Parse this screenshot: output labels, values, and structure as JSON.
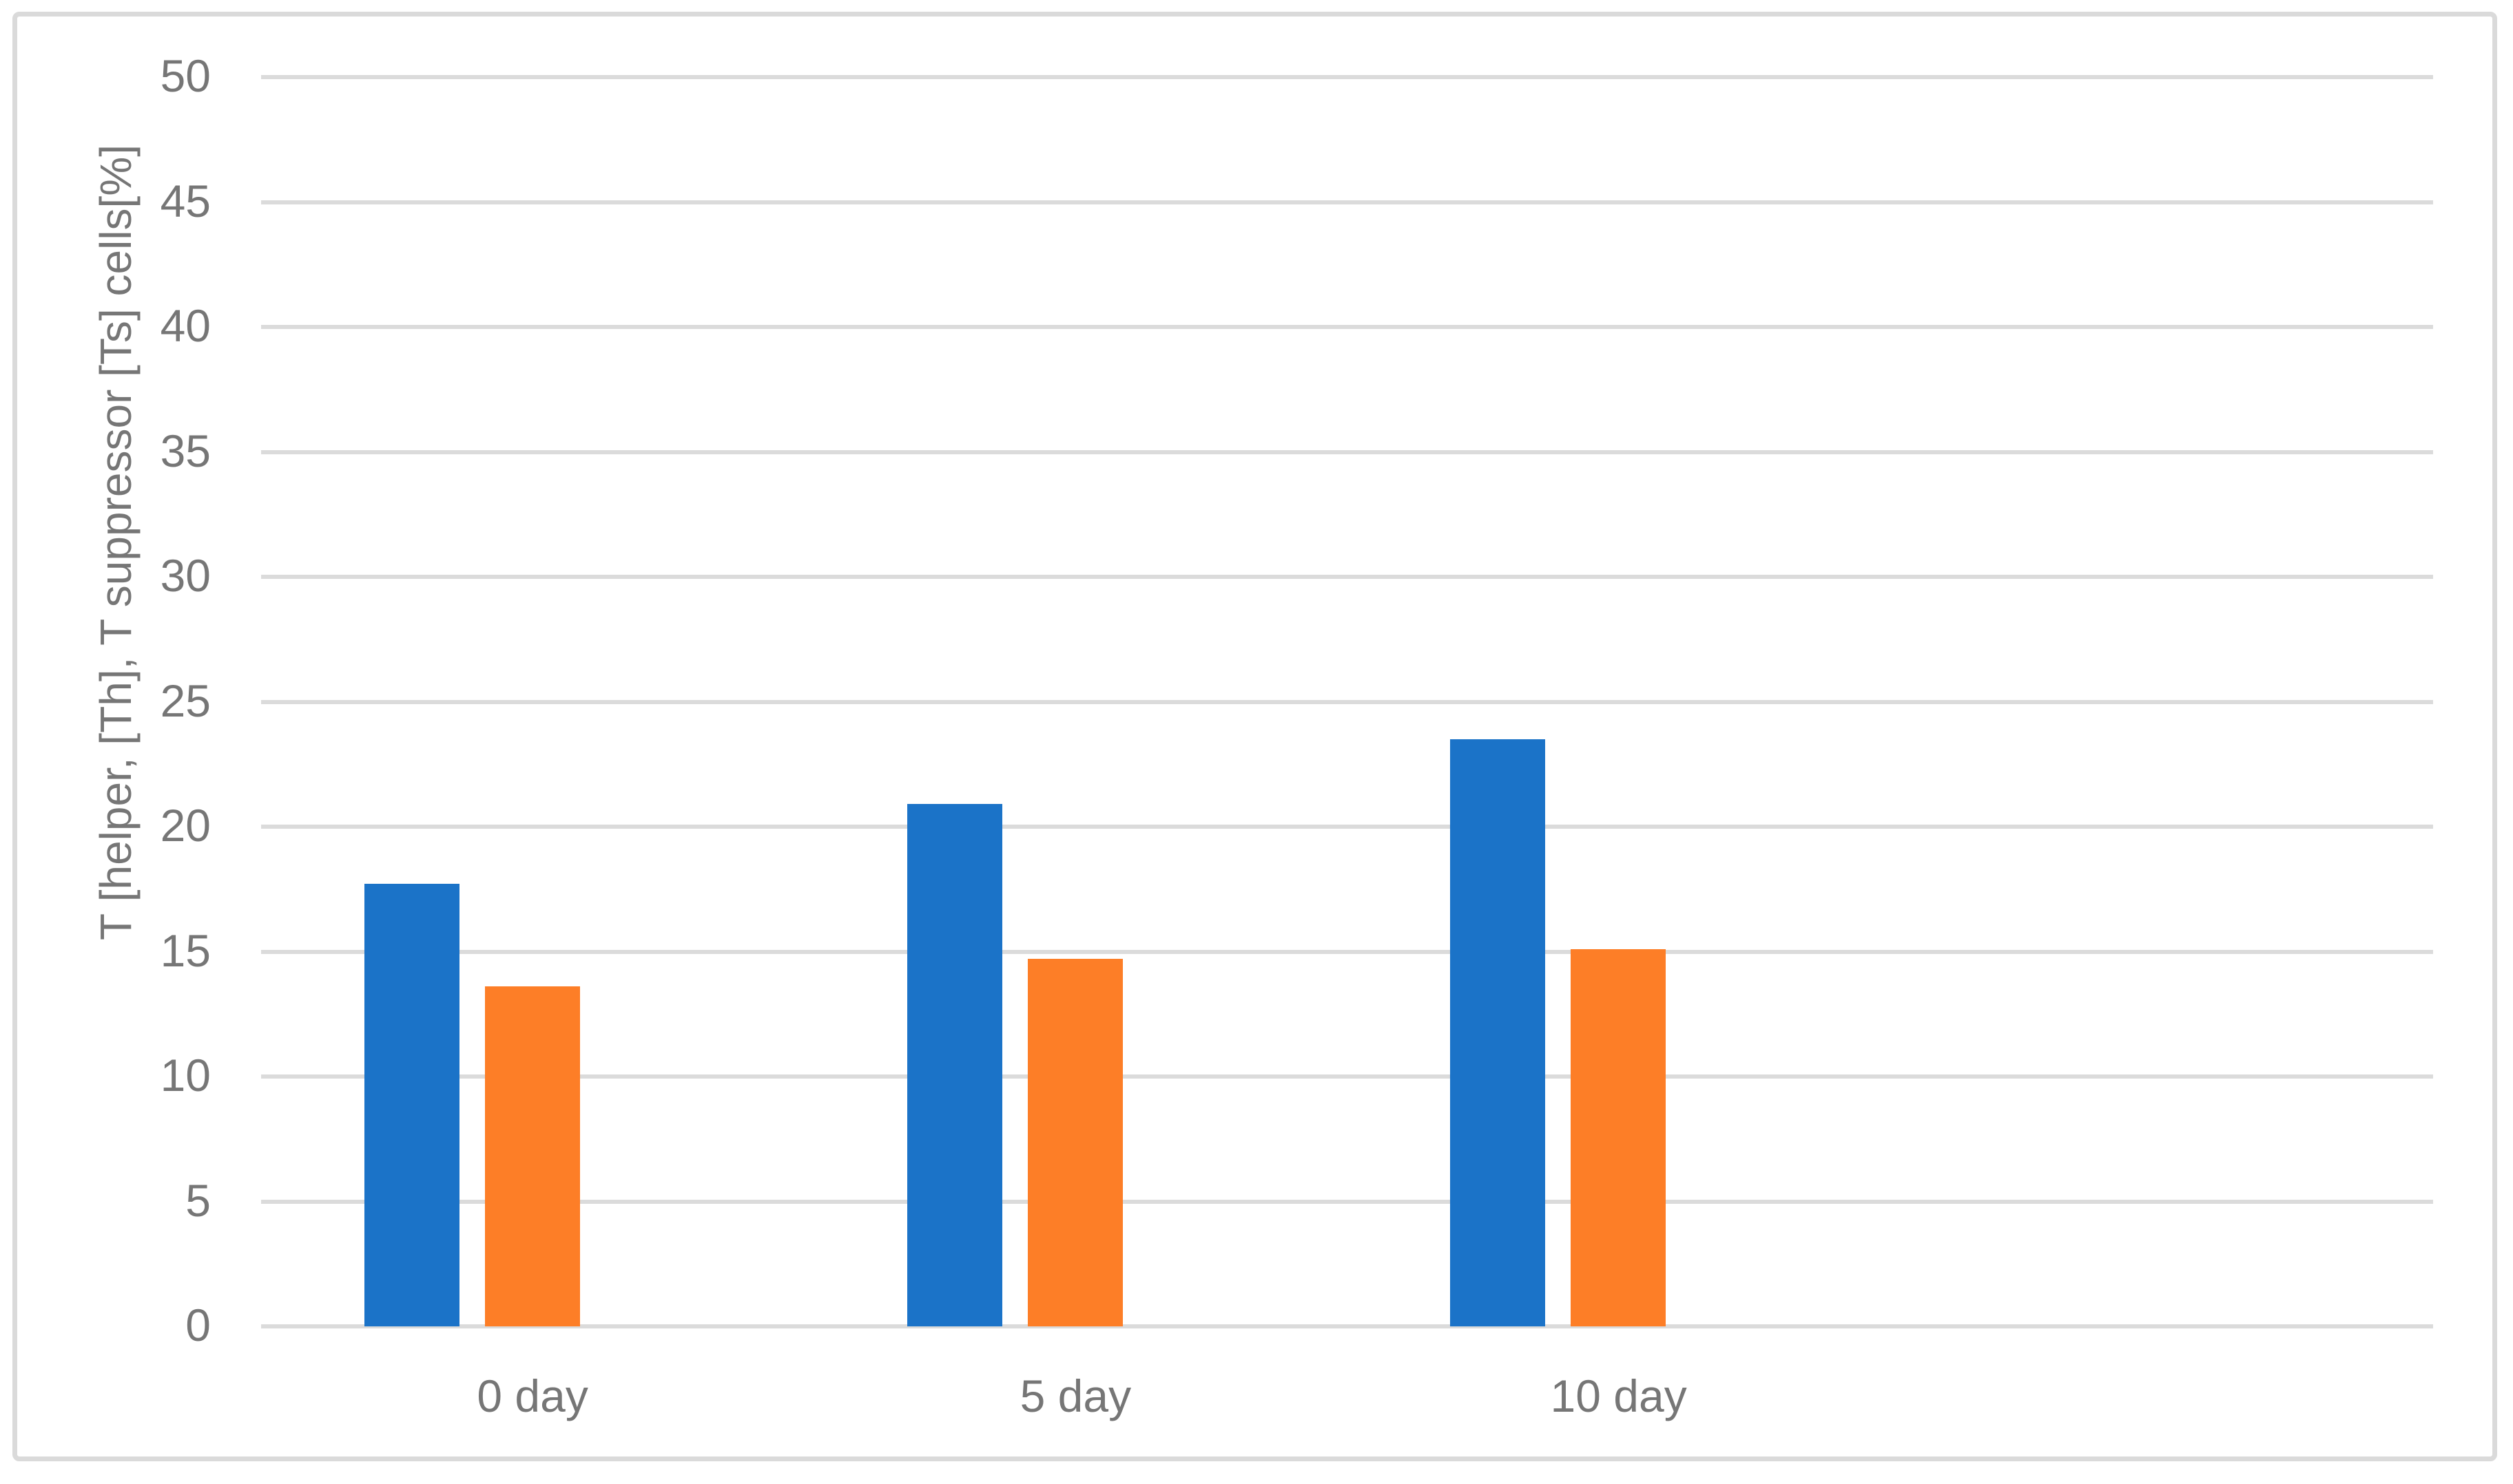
{
  "chart_data": {
    "type": "bar",
    "title": "",
    "categories": [
      "0 day",
      "5 day",
      "10 day"
    ],
    "series": [
      {
        "name": "T helper [Th]",
        "color": "#1B73C8",
        "values": [
          17.7,
          20.9,
          23.5
        ]
      },
      {
        "name": "T suppressor [Ts]",
        "color": "#FD7E27",
        "values": [
          13.6,
          14.7,
          15.1
        ]
      }
    ],
    "xlabel": "",
    "ylabel": "T [helper, [Th], T suppressor [Ts] cells[%]",
    "ylim": [
      0,
      50
    ],
    "ytick_step": 5,
    "yticks": [
      0,
      5,
      10,
      15,
      20,
      25,
      30,
      35,
      40,
      45,
      50
    ],
    "grid": true,
    "legend_position": "none",
    "colors": {
      "axis_text": "#767676",
      "gridline": "#DBDBDB",
      "frame_border": "#DADADA",
      "background": "#FFFFFF"
    }
  }
}
